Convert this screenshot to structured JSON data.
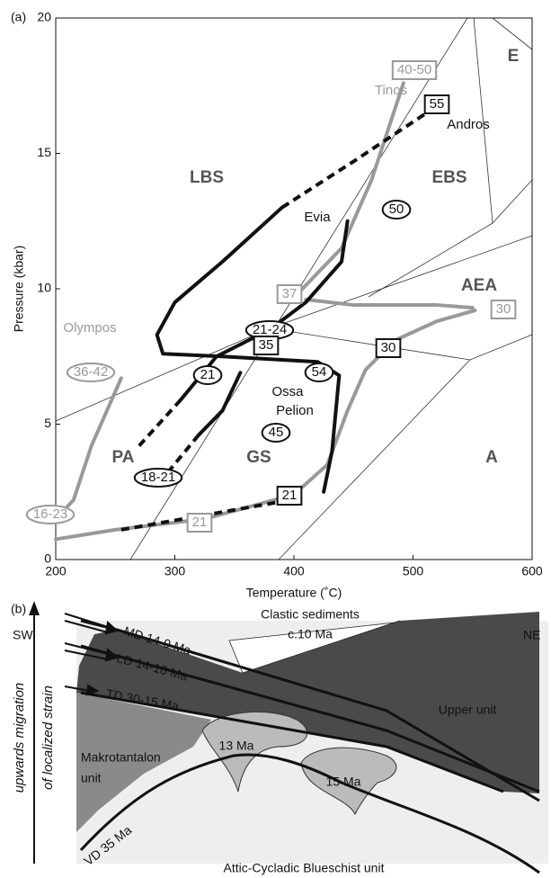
{
  "chart_data": {
    "type": "line",
    "panel_label": "(a)",
    "xlabel": "Temperature (˚C)",
    "ylabel": "Pressure (kbar)",
    "xlim": [
      200,
      600
    ],
    "xticks": [
      200,
      300,
      400,
      500,
      600
    ],
    "ylim": [
      0,
      20
    ],
    "yticks": [
      0,
      5,
      10,
      15,
      20
    ],
    "series": [
      {
        "color": "#999999",
        "dash": false,
        "x": [
          200,
          215,
          230,
          255
        ],
        "y": [
          1.5,
          2.2,
          4.2,
          6.7
        ]
      },
      {
        "color": "#999999",
        "dash": false,
        "x": [
          200,
          250,
          325,
          400,
          428,
          445,
          460,
          485,
          520,
          552
        ],
        "y": [
          0.75,
          1.1,
          1.5,
          2.4,
          3.5,
          5.5,
          7,
          8.1,
          8.8,
          9.2
        ]
      },
      {
        "color": "#999999",
        "dash": false,
        "x": [
          405,
          440,
          465,
          480,
          492
        ],
        "y": [
          9.9,
          11.5,
          14,
          16,
          17.6
        ]
      },
      {
        "color": "#999999",
        "dash": false,
        "x": [
          410,
          450,
          520,
          550
        ],
        "y": [
          9.6,
          9.4,
          9.4,
          9.3
        ]
      },
      {
        "color": "#111111",
        "dash": false,
        "x": [
          390,
          340,
          300,
          285,
          290,
          340,
          420,
          438,
          432,
          425
        ],
        "y": [
          13,
          11,
          9.5,
          8.3,
          7.6,
          7.5,
          7.3,
          6.8,
          4,
          2.5
        ]
      },
      {
        "color": "#111111",
        "dash": true,
        "x": [
          390,
          450,
          515
        ],
        "y": [
          13,
          14.7,
          16.6
        ]
      },
      {
        "color": "#111111",
        "dash": true,
        "x": [
          255,
          320,
          410
        ],
        "y": [
          1.1,
          1.6,
          2.3
        ]
      },
      {
        "color": "#111111",
        "dash": false,
        "x": [
          445,
          440,
          410,
          380,
          335,
          305
        ],
        "y": [
          12.5,
          11,
          9.5,
          8.5,
          7.5,
          5.9
        ]
      },
      {
        "color": "#111111",
        "dash": true,
        "x": [
          305,
          270
        ],
        "y": [
          5.9,
          4.2
        ]
      },
      {
        "color": "#111111",
        "dash": false,
        "x": [
          355,
          340,
          320
        ],
        "y": [
          6.9,
          5.5,
          4.6
        ]
      },
      {
        "color": "#111111",
        "dash": true,
        "x": [
          320,
          290
        ],
        "y": [
          4.6,
          3
        ]
      }
    ],
    "annotations": [
      "E",
      "40-50",
      "Tinos",
      "55",
      "Andros",
      "LBS",
      "EBS",
      "Evia",
      "50",
      "37",
      "AEA",
      "30",
      "Olympos",
      "21-24",
      "35",
      "30",
      "54",
      "36-42",
      "21",
      "Ossa",
      "Pelion",
      "45",
      "PA",
      "GS",
      "A",
      "18-21",
      "21",
      "16-23",
      "21"
    ]
  },
  "cross_section": {
    "panel_label": "(b)",
    "left": "SW",
    "right": "NE",
    "side_label": [
      "upwards migration",
      "of localized strain"
    ],
    "faults": [
      "MD 14-9 Ma",
      "LD 14-10 Ma",
      "TD 30-15 Ma",
      "VD  35 Ma"
    ],
    "units": [
      "Clastic sediments",
      "c.10 Ma",
      "Upper unit",
      "Makrotantalon",
      "unit",
      "13 Ma",
      "15 Ma",
      "Attic-Cycladic Blueschist unit"
    ]
  }
}
